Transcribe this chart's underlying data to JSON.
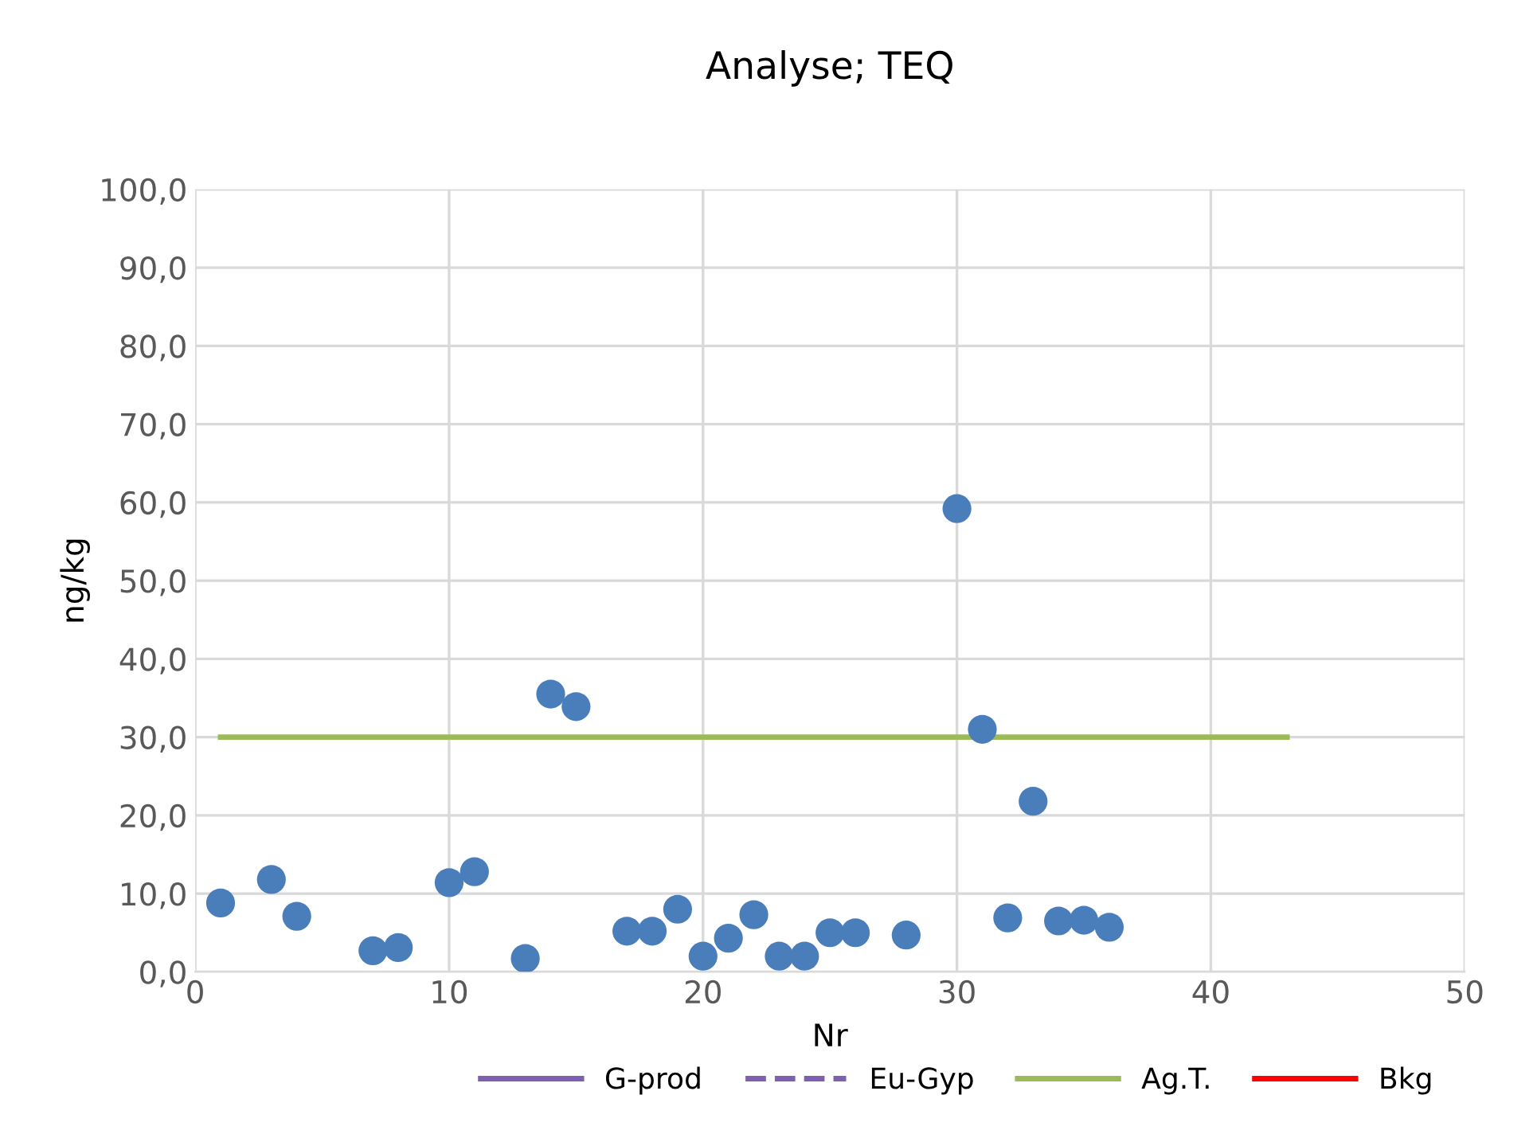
{
  "chart_data": {
    "type": "scatter",
    "title": "Analyse; TEQ",
    "xlabel": "Nr",
    "ylabel": "ng/kg",
    "xlim": [
      0,
      50
    ],
    "xticks": [
      0,
      10,
      20,
      30,
      40,
      50
    ],
    "ylim": [
      0,
      100
    ],
    "yticks": [
      {
        "value": 0,
        "label": "0,0"
      },
      {
        "value": 10,
        "label": "10,0"
      },
      {
        "value": 20,
        "label": "20,0"
      },
      {
        "value": 30,
        "label": "30,0"
      },
      {
        "value": 40,
        "label": "40,0"
      },
      {
        "value": 50,
        "label": "50,0"
      },
      {
        "value": 60,
        "label": "60,0"
      },
      {
        "value": 70,
        "label": "70,0"
      },
      {
        "value": 80,
        "label": "80,0"
      },
      {
        "value": 90,
        "label": "90,0"
      },
      {
        "value": 100,
        "label": "100,0"
      }
    ],
    "grid": true,
    "legend": "bottom",
    "series": [
      {
        "type": "scatter",
        "color": "#4a7ebb",
        "marker": "circle",
        "x": [
          1,
          3,
          4,
          7,
          8,
          10,
          11,
          13,
          14,
          15,
          17,
          18,
          19,
          20,
          21,
          22,
          23,
          24,
          25,
          26,
          28,
          30,
          31,
          32,
          33,
          34,
          35,
          36
        ],
        "values": [
          8.8,
          11.8,
          7.1,
          2.7,
          3.1,
          11.4,
          12.8,
          1.7,
          35.5,
          33.9,
          5.2,
          5.2,
          8.0,
          2.0,
          4.3,
          7.3,
          2.0,
          2.0,
          5.0,
          5.0,
          4.7,
          59.2,
          31.0,
          6.9,
          21.8,
          6.5,
          6.6,
          5.7
        ]
      },
      {
        "type": "line",
        "name": "G-prod",
        "color": "#7f5fb0",
        "line_style": "solid"
      },
      {
        "type": "line",
        "name": "Eu-Gyp",
        "color": "#7f5fb0",
        "line_style": "dashed"
      },
      {
        "type": "line",
        "name": "Ag.T.",
        "color": "#9bbb59",
        "line_style": "solid",
        "x": [
          1,
          43
        ],
        "values": [
          30,
          30
        ]
      },
      {
        "type": "line",
        "name": "Bkg",
        "color": "#ff0000",
        "line_style": "solid"
      }
    ]
  }
}
